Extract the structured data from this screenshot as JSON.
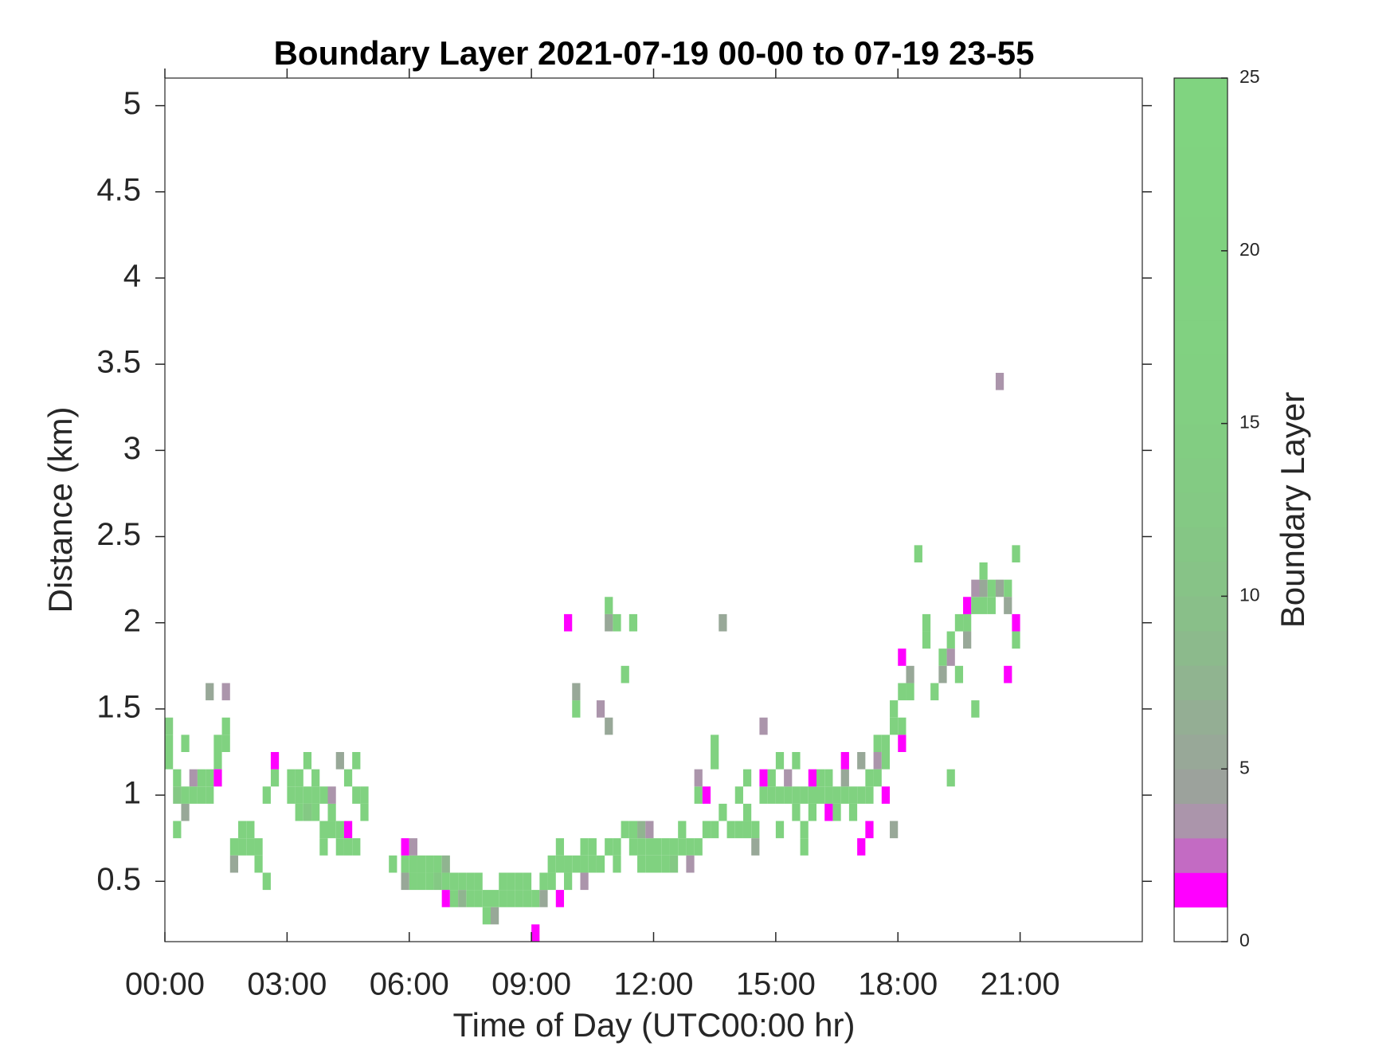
{
  "chart_data": {
    "type": "heatmap",
    "title": "Boundary Layer 2021-07-19 00-00 to 07-19 23-55",
    "xlabel": "Time of Day (UTC00:00 hr)",
    "ylabel": "Distance (km)",
    "colorbar_label": "Boundary Layer",
    "xlim": [
      0,
      24
    ],
    "xticks": [
      {
        "value": 0,
        "label": "00:00"
      },
      {
        "value": 3,
        "label": "03:00"
      },
      {
        "value": 6,
        "label": "06:00"
      },
      {
        "value": 9,
        "label": "09:00"
      },
      {
        "value": 12,
        "label": "12:00"
      },
      {
        "value": 15,
        "label": "15:00"
      },
      {
        "value": 18,
        "label": "18:00"
      },
      {
        "value": 21,
        "label": "21:00"
      }
    ],
    "ylim": [
      0.15,
      5.16
    ],
    "yticks": [
      0.5,
      1,
      1.5,
      2,
      2.5,
      3,
      3.5,
      4,
      4.5,
      5
    ],
    "clim": [
      0,
      25
    ],
    "cticks": [
      0,
      5,
      10,
      15,
      20,
      25
    ],
    "colormap": [
      "#ffffff",
      "#ff00ff",
      "#c36bc3",
      "#ab95ab",
      "#9ca29c",
      "#98a898",
      "#94ae94",
      "#90b490",
      "#8cba8c",
      "#89bf89",
      "#87c387",
      "#85c685",
      "#84c984",
      "#83cb83",
      "#82cd82",
      "#82cf82",
      "#81d081",
      "#81d181",
      "#81d181",
      "#80d280",
      "#80d280",
      "#80d380",
      "#80d380",
      "#80d480",
      "#80d480"
    ],
    "cells": [
      [
        0,
        1.4,
        15
      ],
      [
        0,
        1.3,
        20
      ],
      [
        0,
        1.2,
        20
      ],
      [
        0.2,
        1.1,
        20
      ],
      [
        0.2,
        1.0,
        12
      ],
      [
        0.2,
        0.8,
        20
      ],
      [
        0.4,
        1.3,
        20
      ],
      [
        0.4,
        1.0,
        20
      ],
      [
        0.4,
        0.9,
        5
      ],
      [
        0.6,
        1.1,
        3
      ],
      [
        0.6,
        1.0,
        20
      ],
      [
        0.8,
        1.1,
        20
      ],
      [
        0.8,
        1.0,
        20
      ],
      [
        1.0,
        1.1,
        20
      ],
      [
        1.0,
        1.0,
        20
      ],
      [
        1.0,
        1.6,
        5
      ],
      [
        1.2,
        1.3,
        20
      ],
      [
        1.2,
        1.2,
        20
      ],
      [
        1.2,
        1.1,
        1
      ],
      [
        1.4,
        1.4,
        20
      ],
      [
        1.4,
        1.3,
        20
      ],
      [
        1.4,
        1.6,
        3
      ],
      [
        1.6,
        0.7,
        20
      ],
      [
        1.6,
        0.6,
        5
      ],
      [
        1.8,
        0.8,
        20
      ],
      [
        1.8,
        0.7,
        20
      ],
      [
        2.0,
        0.8,
        20
      ],
      [
        2.0,
        0.7,
        20
      ],
      [
        2.2,
        0.7,
        20
      ],
      [
        2.2,
        0.6,
        20
      ],
      [
        2.4,
        1.0,
        20
      ],
      [
        2.4,
        0.5,
        20
      ],
      [
        2.6,
        1.1,
        20
      ],
      [
        2.6,
        1.2,
        1
      ],
      [
        3.0,
        1.1,
        20
      ],
      [
        3.0,
        1.0,
        20
      ],
      [
        3.2,
        1.1,
        20
      ],
      [
        3.2,
        1.0,
        20
      ],
      [
        3.2,
        0.9,
        20
      ],
      [
        3.4,
        1.2,
        20
      ],
      [
        3.4,
        1.0,
        20
      ],
      [
        3.4,
        0.9,
        12
      ],
      [
        3.6,
        1.1,
        20
      ],
      [
        3.6,
        1.0,
        20
      ],
      [
        3.6,
        0.9,
        20
      ],
      [
        3.8,
        1.0,
        20
      ],
      [
        3.8,
        0.8,
        20
      ],
      [
        3.8,
        0.7,
        20
      ],
      [
        4.0,
        0.9,
        20
      ],
      [
        4.0,
        0.8,
        20
      ],
      [
        4.0,
        1.0,
        3
      ],
      [
        4.2,
        0.8,
        20
      ],
      [
        4.2,
        0.7,
        20
      ],
      [
        4.2,
        1.2,
        5
      ],
      [
        4.4,
        0.8,
        1
      ],
      [
        4.4,
        0.7,
        20
      ],
      [
        4.4,
        1.1,
        20
      ],
      [
        4.6,
        1.0,
        20
      ],
      [
        4.6,
        0.7,
        20
      ],
      [
        4.6,
        1.2,
        20
      ],
      [
        4.8,
        1.0,
        20
      ],
      [
        4.8,
        0.9,
        20
      ],
      [
        5.5,
        0.6,
        20
      ],
      [
        5.8,
        0.6,
        20
      ],
      [
        5.8,
        0.5,
        5
      ],
      [
        5.8,
        0.7,
        1
      ],
      [
        6.0,
        0.6,
        20
      ],
      [
        6.0,
        0.5,
        20
      ],
      [
        6.0,
        0.7,
        3
      ],
      [
        6.2,
        0.6,
        20
      ],
      [
        6.2,
        0.5,
        20
      ],
      [
        6.4,
        0.6,
        20
      ],
      [
        6.4,
        0.5,
        20
      ],
      [
        6.6,
        0.6,
        20
      ],
      [
        6.6,
        0.5,
        12
      ],
      [
        6.8,
        0.5,
        20
      ],
      [
        6.8,
        0.4,
        1
      ],
      [
        6.8,
        0.6,
        7
      ],
      [
        7.0,
        0.5,
        20
      ],
      [
        7.0,
        0.4,
        20
      ],
      [
        7.2,
        0.5,
        20
      ],
      [
        7.2,
        0.4,
        7
      ],
      [
        7.4,
        0.5,
        20
      ],
      [
        7.4,
        0.4,
        20
      ],
      [
        7.6,
        0.5,
        20
      ],
      [
        7.6,
        0.4,
        20
      ],
      [
        7.8,
        0.4,
        20
      ],
      [
        7.8,
        0.3,
        20
      ],
      [
        8.0,
        0.4,
        20
      ],
      [
        8.0,
        0.3,
        5
      ],
      [
        8.2,
        0.4,
        20
      ],
      [
        8.2,
        0.5,
        20
      ],
      [
        8.4,
        0.4,
        20
      ],
      [
        8.4,
        0.5,
        20
      ],
      [
        8.6,
        0.4,
        20
      ],
      [
        8.6,
        0.5,
        20
      ],
      [
        8.8,
        0.4,
        20
      ],
      [
        8.8,
        0.5,
        20
      ],
      [
        9.0,
        0.4,
        20
      ],
      [
        9.0,
        0.2,
        1
      ],
      [
        9.2,
        0.4,
        5
      ],
      [
        9.2,
        0.5,
        20
      ],
      [
        9.4,
        0.5,
        20
      ],
      [
        9.4,
        0.6,
        20
      ],
      [
        9.6,
        0.6,
        20
      ],
      [
        9.6,
        0.7,
        20
      ],
      [
        9.6,
        0.4,
        1
      ],
      [
        9.8,
        0.6,
        20
      ],
      [
        9.8,
        0.5,
        20
      ],
      [
        9.8,
        2.0,
        1
      ],
      [
        10.0,
        0.6,
        20
      ],
      [
        10.0,
        1.5,
        20
      ],
      [
        10.0,
        1.6,
        5
      ],
      [
        10.2,
        0.7,
        20
      ],
      [
        10.2,
        0.6,
        20
      ],
      [
        10.2,
        0.5,
        3
      ],
      [
        10.4,
        0.7,
        20
      ],
      [
        10.4,
        0.6,
        20
      ],
      [
        10.6,
        0.6,
        20
      ],
      [
        10.6,
        1.5,
        3
      ],
      [
        10.8,
        0.7,
        20
      ],
      [
        10.8,
        2.0,
        5
      ],
      [
        10.8,
        2.1,
        20
      ],
      [
        10.8,
        1.4,
        5
      ],
      [
        11.0,
        0.7,
        20
      ],
      [
        11.0,
        2.0,
        20
      ],
      [
        11.0,
        0.6,
        20
      ],
      [
        11.2,
        0.8,
        20
      ],
      [
        11.2,
        1.7,
        20
      ],
      [
        11.4,
        0.8,
        20
      ],
      [
        11.4,
        0.7,
        20
      ],
      [
        11.4,
        2.0,
        20
      ],
      [
        11.6,
        0.7,
        20
      ],
      [
        11.6,
        0.6,
        20
      ],
      [
        11.6,
        0.8,
        7
      ],
      [
        11.8,
        0.7,
        20
      ],
      [
        11.8,
        0.6,
        20
      ],
      [
        11.8,
        0.8,
        3
      ],
      [
        12.0,
        0.7,
        20
      ],
      [
        12.0,
        0.6,
        20
      ],
      [
        12.2,
        0.7,
        20
      ],
      [
        12.2,
        0.6,
        20
      ],
      [
        12.4,
        0.7,
        20
      ],
      [
        12.4,
        0.6,
        12
      ],
      [
        12.6,
        0.7,
        20
      ],
      [
        12.6,
        0.8,
        20
      ],
      [
        12.8,
        0.7,
        20
      ],
      [
        12.8,
        0.6,
        3
      ],
      [
        13.0,
        0.7,
        20
      ],
      [
        13.0,
        1.0,
        20
      ],
      [
        13.0,
        1.1,
        3
      ],
      [
        13.2,
        0.8,
        20
      ],
      [
        13.2,
        1.0,
        1
      ],
      [
        13.4,
        1.3,
        20
      ],
      [
        13.4,
        1.2,
        20
      ],
      [
        13.4,
        0.8,
        20
      ],
      [
        13.6,
        2.0,
        5
      ],
      [
        13.6,
        0.9,
        20
      ],
      [
        13.8,
        0.8,
        20
      ],
      [
        14.0,
        1.0,
        20
      ],
      [
        14.0,
        0.8,
        20
      ],
      [
        14.2,
        0.9,
        20
      ],
      [
        14.2,
        0.8,
        20
      ],
      [
        14.2,
        1.1,
        20
      ],
      [
        14.4,
        0.8,
        20
      ],
      [
        14.4,
        0.7,
        5
      ],
      [
        14.6,
        1.0,
        20
      ],
      [
        14.6,
        1.1,
        1
      ],
      [
        14.6,
        1.4,
        3
      ],
      [
        14.8,
        1.0,
        20
      ],
      [
        14.8,
        1.1,
        20
      ],
      [
        15.0,
        1.0,
        20
      ],
      [
        15.0,
        0.8,
        20
      ],
      [
        15.0,
        1.2,
        20
      ],
      [
        15.2,
        1.0,
        20
      ],
      [
        15.2,
        1.1,
        3
      ],
      [
        15.4,
        1.0,
        20
      ],
      [
        15.4,
        1.2,
        20
      ],
      [
        15.4,
        0.9,
        20
      ],
      [
        15.6,
        1.0,
        20
      ],
      [
        15.6,
        0.8,
        20
      ],
      [
        15.6,
        0.7,
        20
      ],
      [
        15.8,
        1.0,
        20
      ],
      [
        15.8,
        1.1,
        1
      ],
      [
        15.8,
        0.9,
        20
      ],
      [
        16.0,
        1.0,
        20
      ],
      [
        16.0,
        1.1,
        20
      ],
      [
        16.2,
        1.0,
        20
      ],
      [
        16.2,
        1.1,
        20
      ],
      [
        16.2,
        0.9,
        1
      ],
      [
        16.4,
        1.0,
        20
      ],
      [
        16.4,
        0.9,
        20
      ],
      [
        16.6,
        1.0,
        20
      ],
      [
        16.6,
        1.1,
        5
      ],
      [
        16.6,
        1.2,
        1
      ],
      [
        16.8,
        1.0,
        20
      ],
      [
        16.8,
        0.9,
        20
      ],
      [
        17.0,
        1.0,
        20
      ],
      [
        17.0,
        0.7,
        1
      ],
      [
        17.0,
        1.2,
        5
      ],
      [
        17.2,
        1.0,
        20
      ],
      [
        17.2,
        0.8,
        1
      ],
      [
        17.2,
        1.1,
        20
      ],
      [
        17.4,
        1.3,
        20
      ],
      [
        17.4,
        1.2,
        3
      ],
      [
        17.4,
        1.1,
        20
      ],
      [
        17.6,
        1.3,
        20
      ],
      [
        17.6,
        1.2,
        20
      ],
      [
        17.6,
        1.0,
        1
      ],
      [
        17.8,
        1.4,
        20
      ],
      [
        17.8,
        1.5,
        20
      ],
      [
        17.8,
        0.8,
        5
      ],
      [
        18.0,
        1.6,
        20
      ],
      [
        18.0,
        1.3,
        1
      ],
      [
        18.0,
        1.4,
        20
      ],
      [
        18.0,
        1.8,
        1
      ],
      [
        18.2,
        1.6,
        20
      ],
      [
        18.2,
        1.7,
        5
      ],
      [
        18.4,
        2.4,
        20
      ],
      [
        18.6,
        2.0,
        20
      ],
      [
        18.6,
        1.9,
        20
      ],
      [
        18.8,
        1.6,
        20
      ],
      [
        19.0,
        1.8,
        20
      ],
      [
        19.0,
        1.7,
        5
      ],
      [
        19.2,
        1.9,
        20
      ],
      [
        19.2,
        1.8,
        3
      ],
      [
        19.2,
        1.1,
        20
      ],
      [
        19.4,
        1.7,
        20
      ],
      [
        19.4,
        2.0,
        20
      ],
      [
        19.6,
        2.0,
        20
      ],
      [
        19.6,
        1.9,
        5
      ],
      [
        19.6,
        2.1,
        1
      ],
      [
        19.8,
        2.1,
        20
      ],
      [
        19.8,
        2.2,
        3
      ],
      [
        19.8,
        1.5,
        20
      ],
      [
        20.0,
        2.1,
        20
      ],
      [
        20.0,
        2.2,
        5
      ],
      [
        20.0,
        2.3,
        20
      ],
      [
        20.2,
        2.2,
        20
      ],
      [
        20.2,
        2.1,
        20
      ],
      [
        20.4,
        3.4,
        3
      ],
      [
        20.4,
        2.2,
        5
      ],
      [
        20.6,
        2.2,
        20
      ],
      [
        20.6,
        1.7,
        1
      ],
      [
        20.6,
        2.1,
        5
      ],
      [
        20.8,
        2.0,
        1
      ],
      [
        20.8,
        2.4,
        20
      ],
      [
        20.8,
        1.9,
        20
      ]
    ]
  }
}
